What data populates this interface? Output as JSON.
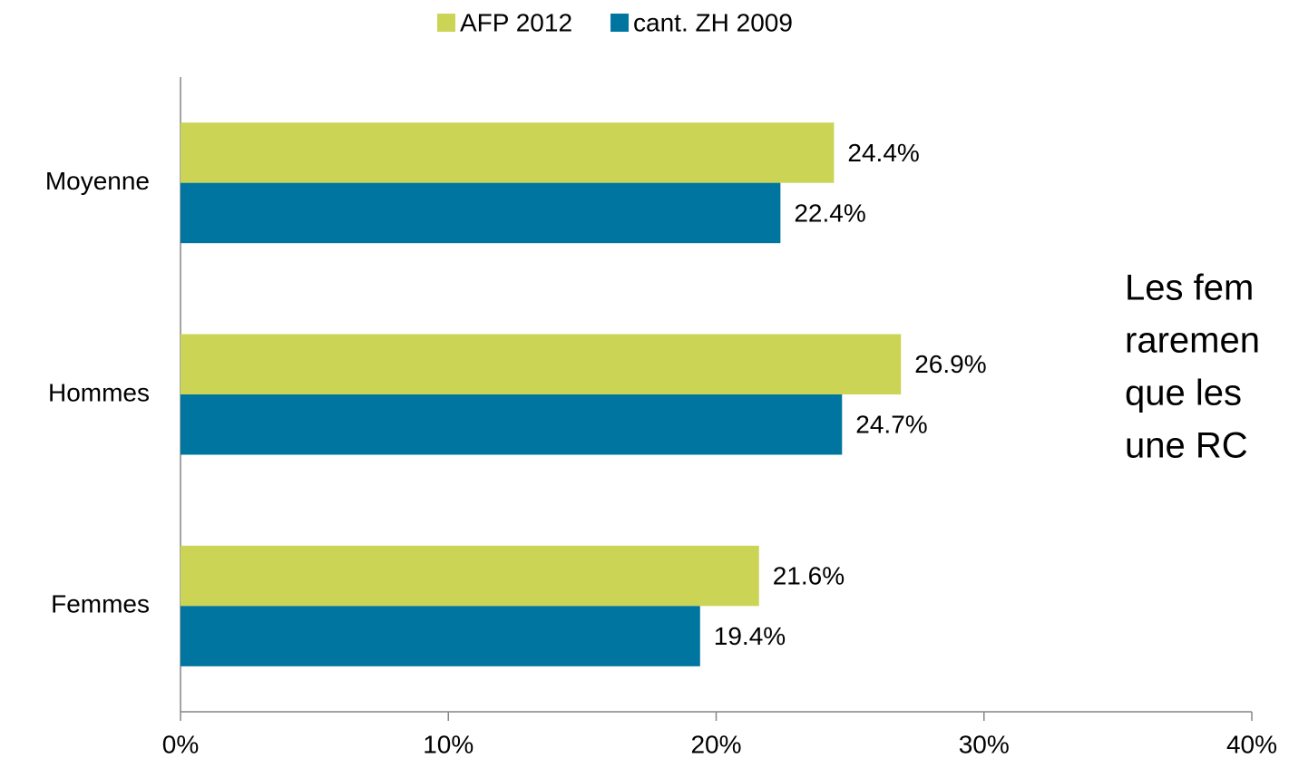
{
  "chart_data": {
    "type": "hbar",
    "categories": [
      "Moyenne",
      "Hommes",
      "Femmes"
    ],
    "series": [
      {
        "name": "AFP 2012",
        "color": "#cbd455",
        "values": [
          24.4,
          26.9,
          21.6
        ],
        "value_labels": [
          "24.4%",
          "26.9%",
          "21.6%"
        ]
      },
      {
        "name": "cant. ZH 2009",
        "color": "#0075a0",
        "values": [
          22.4,
          24.7,
          19.4
        ],
        "value_labels": [
          "22.4%",
          "24.7%",
          "19.4%"
        ]
      }
    ],
    "xlim": [
      0,
      40
    ],
    "xticks": [
      {
        "value": 0,
        "label": "0%"
      },
      {
        "value": 10,
        "label": "10%"
      },
      {
        "value": 20,
        "label": "20%"
      },
      {
        "value": 30,
        "label": "30%"
      },
      {
        "value": 40,
        "label": "40%"
      }
    ],
    "legend": "top",
    "annotation": [
      "Les fem",
      "raremen",
      "que les",
      "une RC"
    ]
  }
}
